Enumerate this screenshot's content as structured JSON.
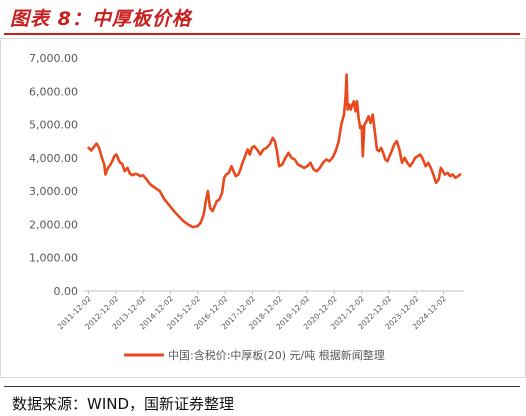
{
  "figure": {
    "title": "图表 8：中厚板价格",
    "source": "数据来源：WIND，国新证券整理"
  },
  "colors": {
    "series": "#e8491d",
    "title": "#c8201e",
    "axis": "#595959",
    "frame": "#d9d9d9"
  },
  "chart_data": {
    "type": "line",
    "title": "",
    "xlabel": "",
    "ylabel": "",
    "ylim": [
      0,
      7000
    ],
    "y_ticks": [
      "0.00",
      "1,000.00",
      "2,000.00",
      "3,000.00",
      "4,000.00",
      "5,000.00",
      "6,000.00",
      "7,000.00"
    ],
    "x_ticks": [
      "2011-12-02",
      "2012-12-02",
      "2013-12-02",
      "2014-12-02",
      "2015-12-02",
      "2016-12-02",
      "2017-12-02",
      "2018-12-02",
      "2019-12-02",
      "2020-12-02",
      "2021-12-02",
      "2022-12-02",
      "2023-12-02",
      "2024-12-02"
    ],
    "grid": false,
    "legend_position": "bottom",
    "series": [
      {
        "name": "中国:含税价:中厚板(20) 元/吨 根据新闻整理",
        "points": [
          [
            "2011-12-02",
            4300
          ],
          [
            "2012-01-06",
            4220
          ],
          [
            "2012-02-10",
            4330
          ],
          [
            "2012-03-16",
            4430
          ],
          [
            "2012-04-20",
            4300
          ],
          [
            "2012-05-25",
            4020
          ],
          [
            "2012-06-29",
            3800
          ],
          [
            "2012-07-13",
            3500
          ],
          [
            "2012-08-17",
            3700
          ],
          [
            "2012-09-14",
            3780
          ],
          [
            "2012-10-12",
            3900
          ],
          [
            "2012-11-09",
            4050
          ],
          [
            "2012-12-07",
            4100
          ],
          [
            "2013-01-18",
            3880
          ],
          [
            "2013-02-22",
            3820
          ],
          [
            "2013-03-29",
            3600
          ],
          [
            "2013-05-03",
            3700
          ],
          [
            "2013-06-07",
            3520
          ],
          [
            "2013-07-12",
            3480
          ],
          [
            "2013-08-16",
            3520
          ],
          [
            "2013-09-20",
            3500
          ],
          [
            "2013-10-25",
            3450
          ],
          [
            "2013-11-29",
            3480
          ],
          [
            "2014-01-03",
            3390
          ],
          [
            "2014-03-07",
            3200
          ],
          [
            "2014-05-09",
            3100
          ],
          [
            "2014-07-11",
            3000
          ],
          [
            "2014-09-12",
            2750
          ],
          [
            "2014-11-14",
            2580
          ],
          [
            "2015-01-16",
            2400
          ],
          [
            "2015-03-20",
            2250
          ],
          [
            "2015-05-22",
            2100
          ],
          [
            "2015-07-24",
            2000
          ],
          [
            "2015-09-25",
            1920
          ],
          [
            "2015-11-27",
            1950
          ],
          [
            "2016-01-08",
            2050
          ],
          [
            "2016-02-19",
            2300
          ],
          [
            "2016-03-18",
            2700
          ],
          [
            "2016-04-15",
            3000
          ],
          [
            "2016-05-13",
            2500
          ],
          [
            "2016-06-17",
            2400
          ],
          [
            "2016-07-15",
            2550
          ],
          [
            "2016-08-12",
            2700
          ],
          [
            "2016-09-16",
            2750
          ],
          [
            "2016-10-21",
            2950
          ],
          [
            "2016-11-18",
            3400
          ],
          [
            "2016-12-16",
            3500
          ],
          [
            "2017-01-20",
            3550
          ],
          [
            "2017-02-24",
            3750
          ],
          [
            "2017-03-24",
            3600
          ],
          [
            "2017-04-21",
            3450
          ],
          [
            "2017-05-26",
            3500
          ],
          [
            "2017-06-23",
            3650
          ],
          [
            "2017-07-21",
            3850
          ],
          [
            "2017-08-25",
            4050
          ],
          [
            "2017-09-29",
            4250
          ],
          [
            "2017-10-27",
            4100
          ],
          [
            "2017-11-24",
            4300
          ],
          [
            "2017-12-22",
            4350
          ],
          [
            "2018-02-02",
            4250
          ],
          [
            "2018-03-16",
            4100
          ],
          [
            "2018-04-27",
            4250
          ],
          [
            "2018-06-08",
            4300
          ],
          [
            "2018-07-20",
            4400
          ],
          [
            "2018-08-31",
            4600
          ],
          [
            "2018-09-28",
            4500
          ],
          [
            "2018-10-26",
            4200
          ],
          [
            "2018-11-23",
            3750
          ],
          [
            "2019-01-04",
            3800
          ],
          [
            "2019-02-15",
            4000
          ],
          [
            "2019-03-29",
            4150
          ],
          [
            "2019-05-10",
            4000
          ],
          [
            "2019-06-21",
            3950
          ],
          [
            "2019-08-02",
            3800
          ],
          [
            "2019-09-13",
            3750
          ],
          [
            "2019-10-25",
            3700
          ],
          [
            "2019-12-06",
            3750
          ],
          [
            "2020-01-17",
            3850
          ],
          [
            "2020-02-28",
            3650
          ],
          [
            "2020-04-10",
            3600
          ],
          [
            "2020-05-22",
            3700
          ],
          [
            "2020-07-03",
            3850
          ],
          [
            "2020-08-14",
            3950
          ],
          [
            "2020-09-25",
            3900
          ],
          [
            "2020-11-06",
            4000
          ],
          [
            "2020-12-18",
            4200
          ],
          [
            "2021-01-29",
            4500
          ],
          [
            "2021-03-05",
            5000
          ],
          [
            "2021-04-09",
            5300
          ],
          [
            "2021-04-30",
            5800
          ],
          [
            "2021-05-14",
            6500
          ],
          [
            "2021-05-28",
            5450
          ],
          [
            "2021-06-18",
            5600
          ],
          [
            "2021-07-09",
            5450
          ],
          [
            "2021-07-30",
            5600
          ],
          [
            "2021-08-20",
            5700
          ],
          [
            "2021-09-10",
            5400
          ],
          [
            "2021-10-01",
            5700
          ],
          [
            "2021-10-22",
            5200
          ],
          [
            "2021-11-12",
            4900
          ],
          [
            "2021-12-03",
            4950
          ],
          [
            "2021-12-17",
            4050
          ],
          [
            "2022-01-07",
            5000
          ],
          [
            "2022-02-04",
            5100
          ],
          [
            "2022-03-04",
            5250
          ],
          [
            "2022-04-01",
            5050
          ],
          [
            "2022-04-29",
            5300
          ],
          [
            "2022-05-27",
            4800
          ],
          [
            "2022-06-24",
            4250
          ],
          [
            "2022-07-22",
            4200
          ],
          [
            "2022-08-19",
            4300
          ],
          [
            "2022-09-16",
            4150
          ],
          [
            "2022-10-14",
            3950
          ],
          [
            "2022-11-11",
            3900
          ],
          [
            "2022-12-09",
            4050
          ],
          [
            "2023-01-06",
            4200
          ],
          [
            "2023-02-10",
            4400
          ],
          [
            "2023-03-17",
            4500
          ],
          [
            "2023-04-21",
            4250
          ],
          [
            "2023-05-26",
            3850
          ],
          [
            "2023-06-30",
            4000
          ],
          [
            "2023-08-04",
            3850
          ],
          [
            "2023-09-08",
            3750
          ],
          [
            "2023-10-13",
            3850
          ],
          [
            "2023-11-17",
            4000
          ],
          [
            "2023-12-22",
            4050
          ],
          [
            "2024-01-26",
            4100
          ],
          [
            "2024-03-01",
            3950
          ],
          [
            "2024-04-05",
            3750
          ],
          [
            "2024-05-10",
            3850
          ],
          [
            "2024-06-14",
            3700
          ],
          [
            "2024-07-19",
            3500
          ],
          [
            "2024-08-23",
            3250
          ],
          [
            "2024-09-27",
            3350
          ],
          [
            "2024-10-25",
            3700
          ],
          [
            "2024-11-22",
            3600
          ],
          [
            "2024-12-20",
            3500
          ],
          [
            "2025-01-24",
            3550
          ],
          [
            "2025-02-28",
            3450
          ],
          [
            "2025-04-04",
            3500
          ],
          [
            "2025-05-09",
            3400
          ],
          [
            "2025-06-13",
            3450
          ],
          [
            "2025-07-11",
            3500
          ]
        ]
      }
    ]
  }
}
